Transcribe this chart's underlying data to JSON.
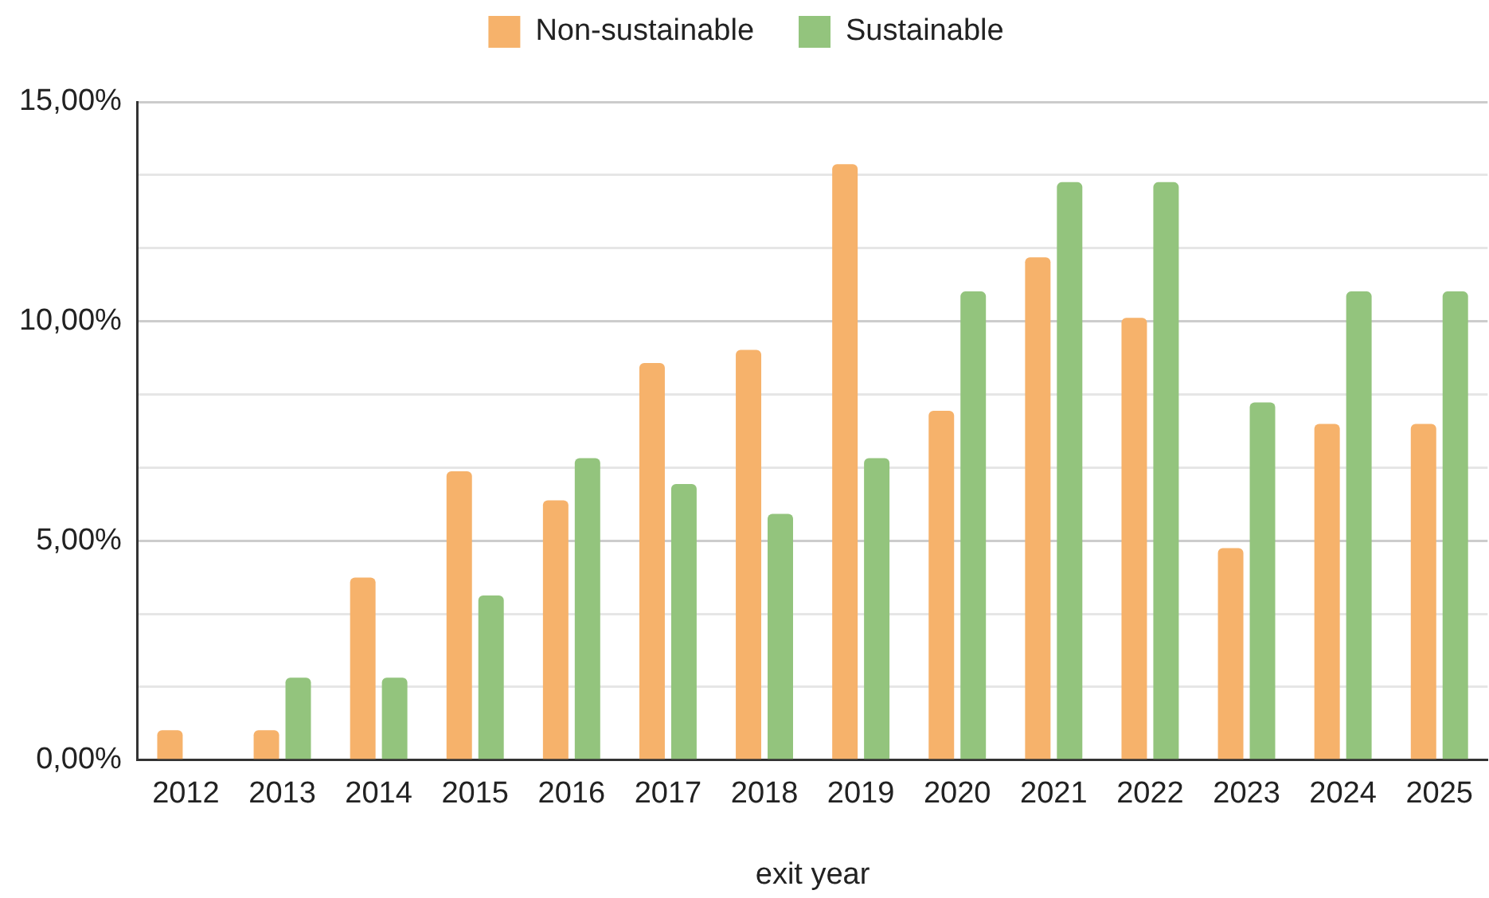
{
  "chart_data": {
    "type": "bar",
    "xlabel": "exit year",
    "categories": [
      "2012",
      "2013",
      "2014",
      "2015",
      "2016",
      "2017",
      "2018",
      "2019",
      "2020",
      "2021",
      "2022",
      "2023",
      "2024",
      "2025"
    ],
    "series": [
      {
        "name": "Non-sustainable",
        "color": "#f6b26b",
        "values": [
          0.68,
          0.68,
          4.16,
          6.58,
          5.92,
          9.05,
          9.35,
          13.58,
          7.96,
          11.46,
          10.08,
          4.83,
          7.66,
          7.66
        ]
      },
      {
        "name": "Sustainable",
        "color": "#93c47d",
        "values": [
          0,
          1.88,
          1.88,
          3.75,
          6.88,
          6.29,
          5.61,
          6.88,
          10.68,
          13.17,
          13.17,
          8.15,
          10.68,
          10.68
        ]
      }
    ],
    "ylim": [
      0,
      15
    ],
    "yticks": [
      {
        "value": 0,
        "label": "0,00%"
      },
      {
        "value": 1.667,
        "label": null
      },
      {
        "value": 3.333,
        "label": null
      },
      {
        "value": 5,
        "label": "5,00%"
      },
      {
        "value": 6.667,
        "label": null
      },
      {
        "value": 8.333,
        "label": null
      },
      {
        "value": 10,
        "label": "10,00%"
      },
      {
        "value": 11.667,
        "label": null
      },
      {
        "value": 13.333,
        "label": null
      },
      {
        "value": 15,
        "label": "15,00%"
      }
    ],
    "grid": "y",
    "legend": "top"
  }
}
